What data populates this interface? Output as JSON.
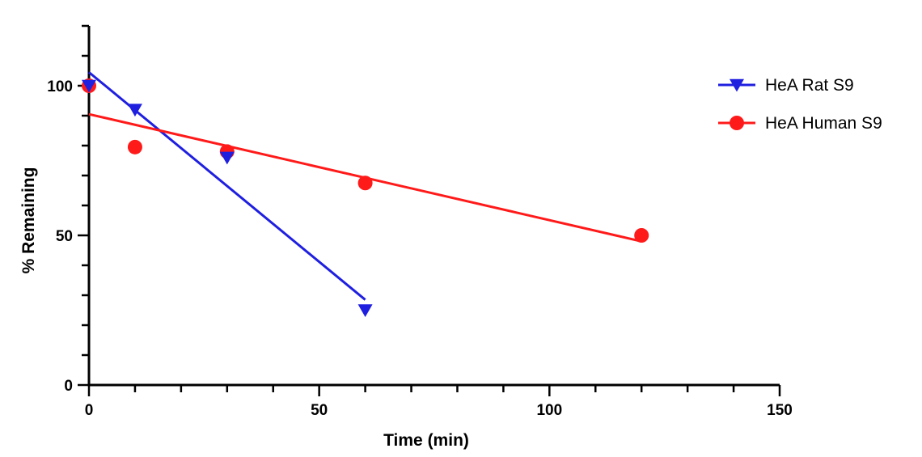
{
  "chart_data": {
    "type": "scatter",
    "title": "",
    "xlabel": "Time (min)",
    "ylabel": "% Remaining",
    "xlim": [
      0,
      150
    ],
    "ylim": [
      0,
      120
    ],
    "x_major_ticks": [
      0,
      50,
      100,
      150
    ],
    "x_tick_labels": [
      "0",
      "50",
      "100",
      "150"
    ],
    "x_minor_step": 10,
    "y_major_ticks": [
      0,
      50,
      100
    ],
    "y_tick_labels": [
      "0",
      "50",
      "100"
    ],
    "y_minor_step": 10,
    "grid": false,
    "legend_position": "top-right",
    "series": [
      {
        "name": "HeA Rat S9",
        "marker": "triangle-down",
        "color": "#1f1fe0",
        "points": [
          [
            0,
            100
          ],
          [
            10,
            92
          ],
          [
            30,
            76
          ],
          [
            60,
            25
          ]
        ],
        "fit_line": [
          [
            0,
            104.5
          ],
          [
            60,
            28.5
          ]
        ]
      },
      {
        "name": "HeA Human S9",
        "marker": "circle",
        "color": "#ff1a1a",
        "points": [
          [
            0,
            100
          ],
          [
            10,
            79.5
          ],
          [
            30,
            78
          ],
          [
            60,
            67.5
          ],
          [
            120,
            50
          ]
        ],
        "fit_line": [
          [
            0,
            90.5
          ],
          [
            120,
            48
          ]
        ]
      }
    ]
  }
}
